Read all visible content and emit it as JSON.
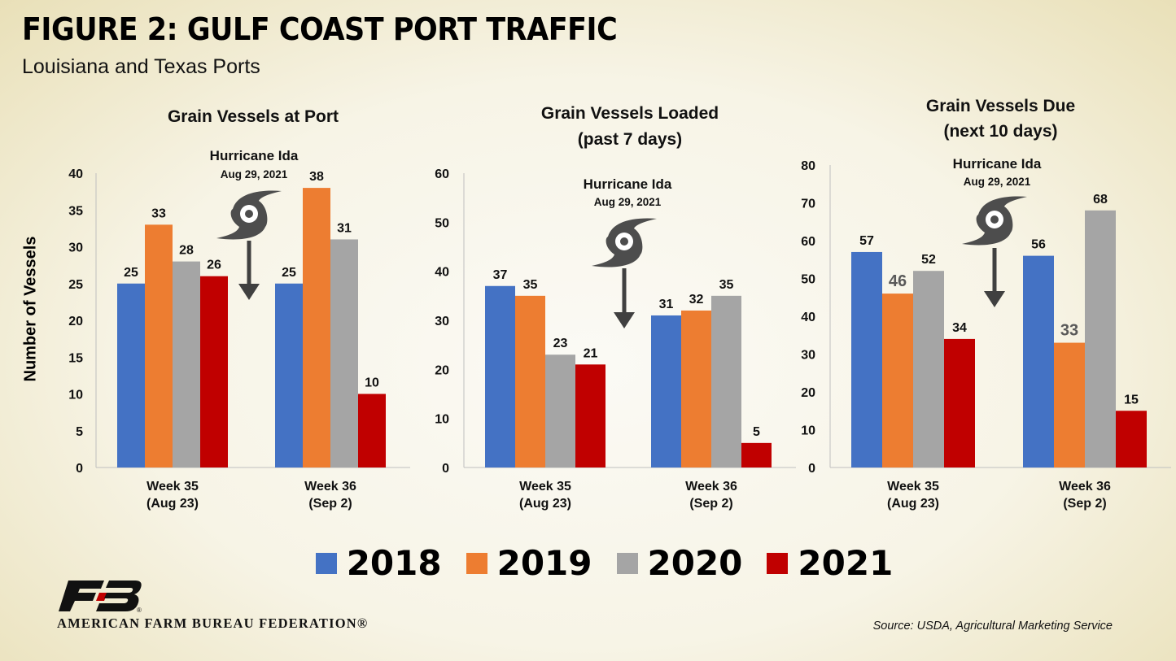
{
  "header": {
    "title": "FIGURE 2: GULF COAST PORT TRAFFIC",
    "subtitle": "Louisiana and Texas Ports"
  },
  "y_axis_label": "Number of Vessels",
  "colors": {
    "2018": "#4472c4",
    "2019": "#ed7d31",
    "2020": "#a5a5a5",
    "2021": "#c00000"
  },
  "annotation": {
    "title": "Hurricane Ida",
    "date": "Aug 29, 2021",
    "icon": "hurricane-icon"
  },
  "legend": [
    {
      "label": "2018",
      "color": "#4472c4"
    },
    {
      "label": "2019",
      "color": "#ed7d31"
    },
    {
      "label": "2020",
      "color": "#a5a5a5"
    },
    {
      "label": "2021",
      "color": "#c00000"
    }
  ],
  "footer": {
    "organization": "AMERICAN FARM BUREAU FEDERATION®",
    "source": "Source: USDA, Agricultural Marketing Service"
  },
  "chart_data": [
    {
      "type": "bar",
      "title": [
        "Grain Vessels at Port"
      ],
      "categories": [
        [
          "Week 35",
          "(Aug 23)"
        ],
        [
          "Week 36",
          "(Sep 2)"
        ]
      ],
      "ylim": [
        0,
        40
      ],
      "yticks": [
        0,
        5,
        10,
        15,
        20,
        25,
        30,
        35,
        40
      ],
      "grid": false,
      "series": [
        {
          "name": "2018",
          "values": [
            25,
            25
          ]
        },
        {
          "name": "2019",
          "values": [
            33,
            38
          ]
        },
        {
          "name": "2020",
          "values": [
            28,
            31
          ]
        },
        {
          "name": "2021",
          "values": [
            26,
            10
          ]
        }
      ]
    },
    {
      "type": "bar",
      "title": [
        "Grain Vessels Loaded",
        "(past 7 days)"
      ],
      "categories": [
        [
          "Week 35",
          "(Aug 23)"
        ],
        [
          "Week 36",
          "(Sep 2)"
        ]
      ],
      "ylim": [
        0,
        60
      ],
      "yticks": [
        0,
        10,
        20,
        30,
        40,
        50,
        60
      ],
      "grid": false,
      "series": [
        {
          "name": "2018",
          "values": [
            37,
            31
          ]
        },
        {
          "name": "2019",
          "values": [
            35,
            32
          ]
        },
        {
          "name": "2020",
          "values": [
            23,
            35
          ]
        },
        {
          "name": "2021",
          "values": [
            21,
            5
          ]
        }
      ]
    },
    {
      "type": "bar",
      "title": [
        "Grain Vessels Due",
        "(next 10 days)"
      ],
      "categories": [
        [
          "Week 35",
          "(Aug 23)"
        ],
        [
          "Week 36",
          "(Sep 2)"
        ]
      ],
      "ylim": [
        0,
        80
      ],
      "yticks": [
        0,
        10,
        20,
        30,
        40,
        50,
        60,
        70,
        80
      ],
      "grid": false,
      "series": [
        {
          "name": "2018",
          "values": [
            57,
            56
          ]
        },
        {
          "name": "2019",
          "values": [
            46,
            33
          ]
        },
        {
          "name": "2020",
          "values": [
            52,
            68
          ]
        },
        {
          "name": "2021",
          "values": [
            34,
            15
          ]
        }
      ]
    }
  ]
}
